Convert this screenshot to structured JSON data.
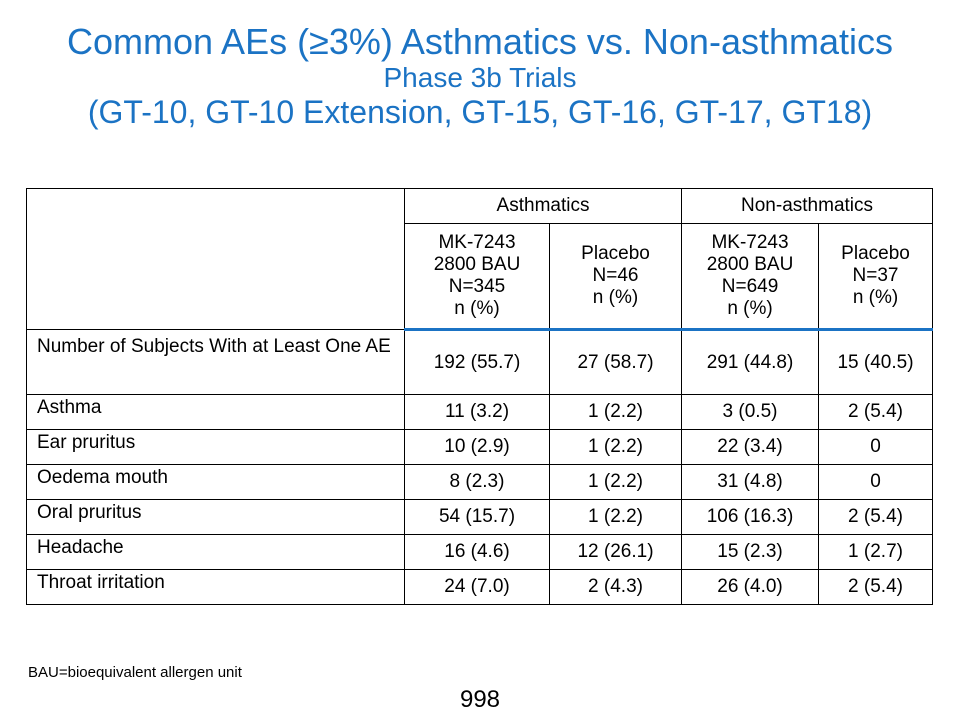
{
  "title": {
    "line1": "Common AEs (≥3%) Asthmatics vs. Non-asthmatics",
    "line2": "Phase 3b Trials",
    "line3": "(GT-10, GT-10 Extension, GT-15, GT-16, GT-17, GT18)"
  },
  "table": {
    "groups": [
      "Asthmatics",
      "Non-asthmatics"
    ],
    "subheaders": [
      [
        "MK-7243",
        "2800 BAU",
        "N=345",
        "n (%)"
      ],
      [
        "Placebo",
        "N=46",
        "n (%)"
      ],
      [
        "MK-7243",
        "2800 BAU",
        "N=649",
        "n (%)"
      ],
      [
        "Placebo",
        "N=37",
        "n (%)"
      ]
    ],
    "rows": [
      {
        "label": "Number of Subjects With at Least One AE",
        "values": [
          "192 (55.7)",
          "27 (58.7)",
          "291 (44.8)",
          "15 (40.5)"
        ]
      },
      {
        "label": "Asthma",
        "values": [
          "11 (3.2)",
          "1 (2.2)",
          "3 (0.5)",
          "2 (5.4)"
        ]
      },
      {
        "label": "Ear pruritus",
        "values": [
          "10 (2.9)",
          "1 (2.2)",
          "22 (3.4)",
          "0"
        ]
      },
      {
        "label": "Oedema mouth",
        "values": [
          "8 (2.3)",
          "1 (2.2)",
          "31 (4.8)",
          "0"
        ]
      },
      {
        "label": "Oral pruritus",
        "values": [
          "54 (15.7)",
          "1 (2.2)",
          "106 (16.3)",
          "2 (5.4)"
        ]
      },
      {
        "label": "Headache",
        "values": [
          "16 (4.6)",
          "12 (26.1)",
          "15 (2.3)",
          "1 (2.7)"
        ]
      },
      {
        "label": "Throat irritation",
        "values": [
          "24 (7.0)",
          "2 (4.3)",
          "26 (4.0)",
          "2 (5.4)"
        ]
      }
    ]
  },
  "footnote": "BAU=bioequivalent allergen unit",
  "page_number": "998",
  "colors": {
    "title": "#1b73c4",
    "header_rule": "#1b73c4"
  }
}
